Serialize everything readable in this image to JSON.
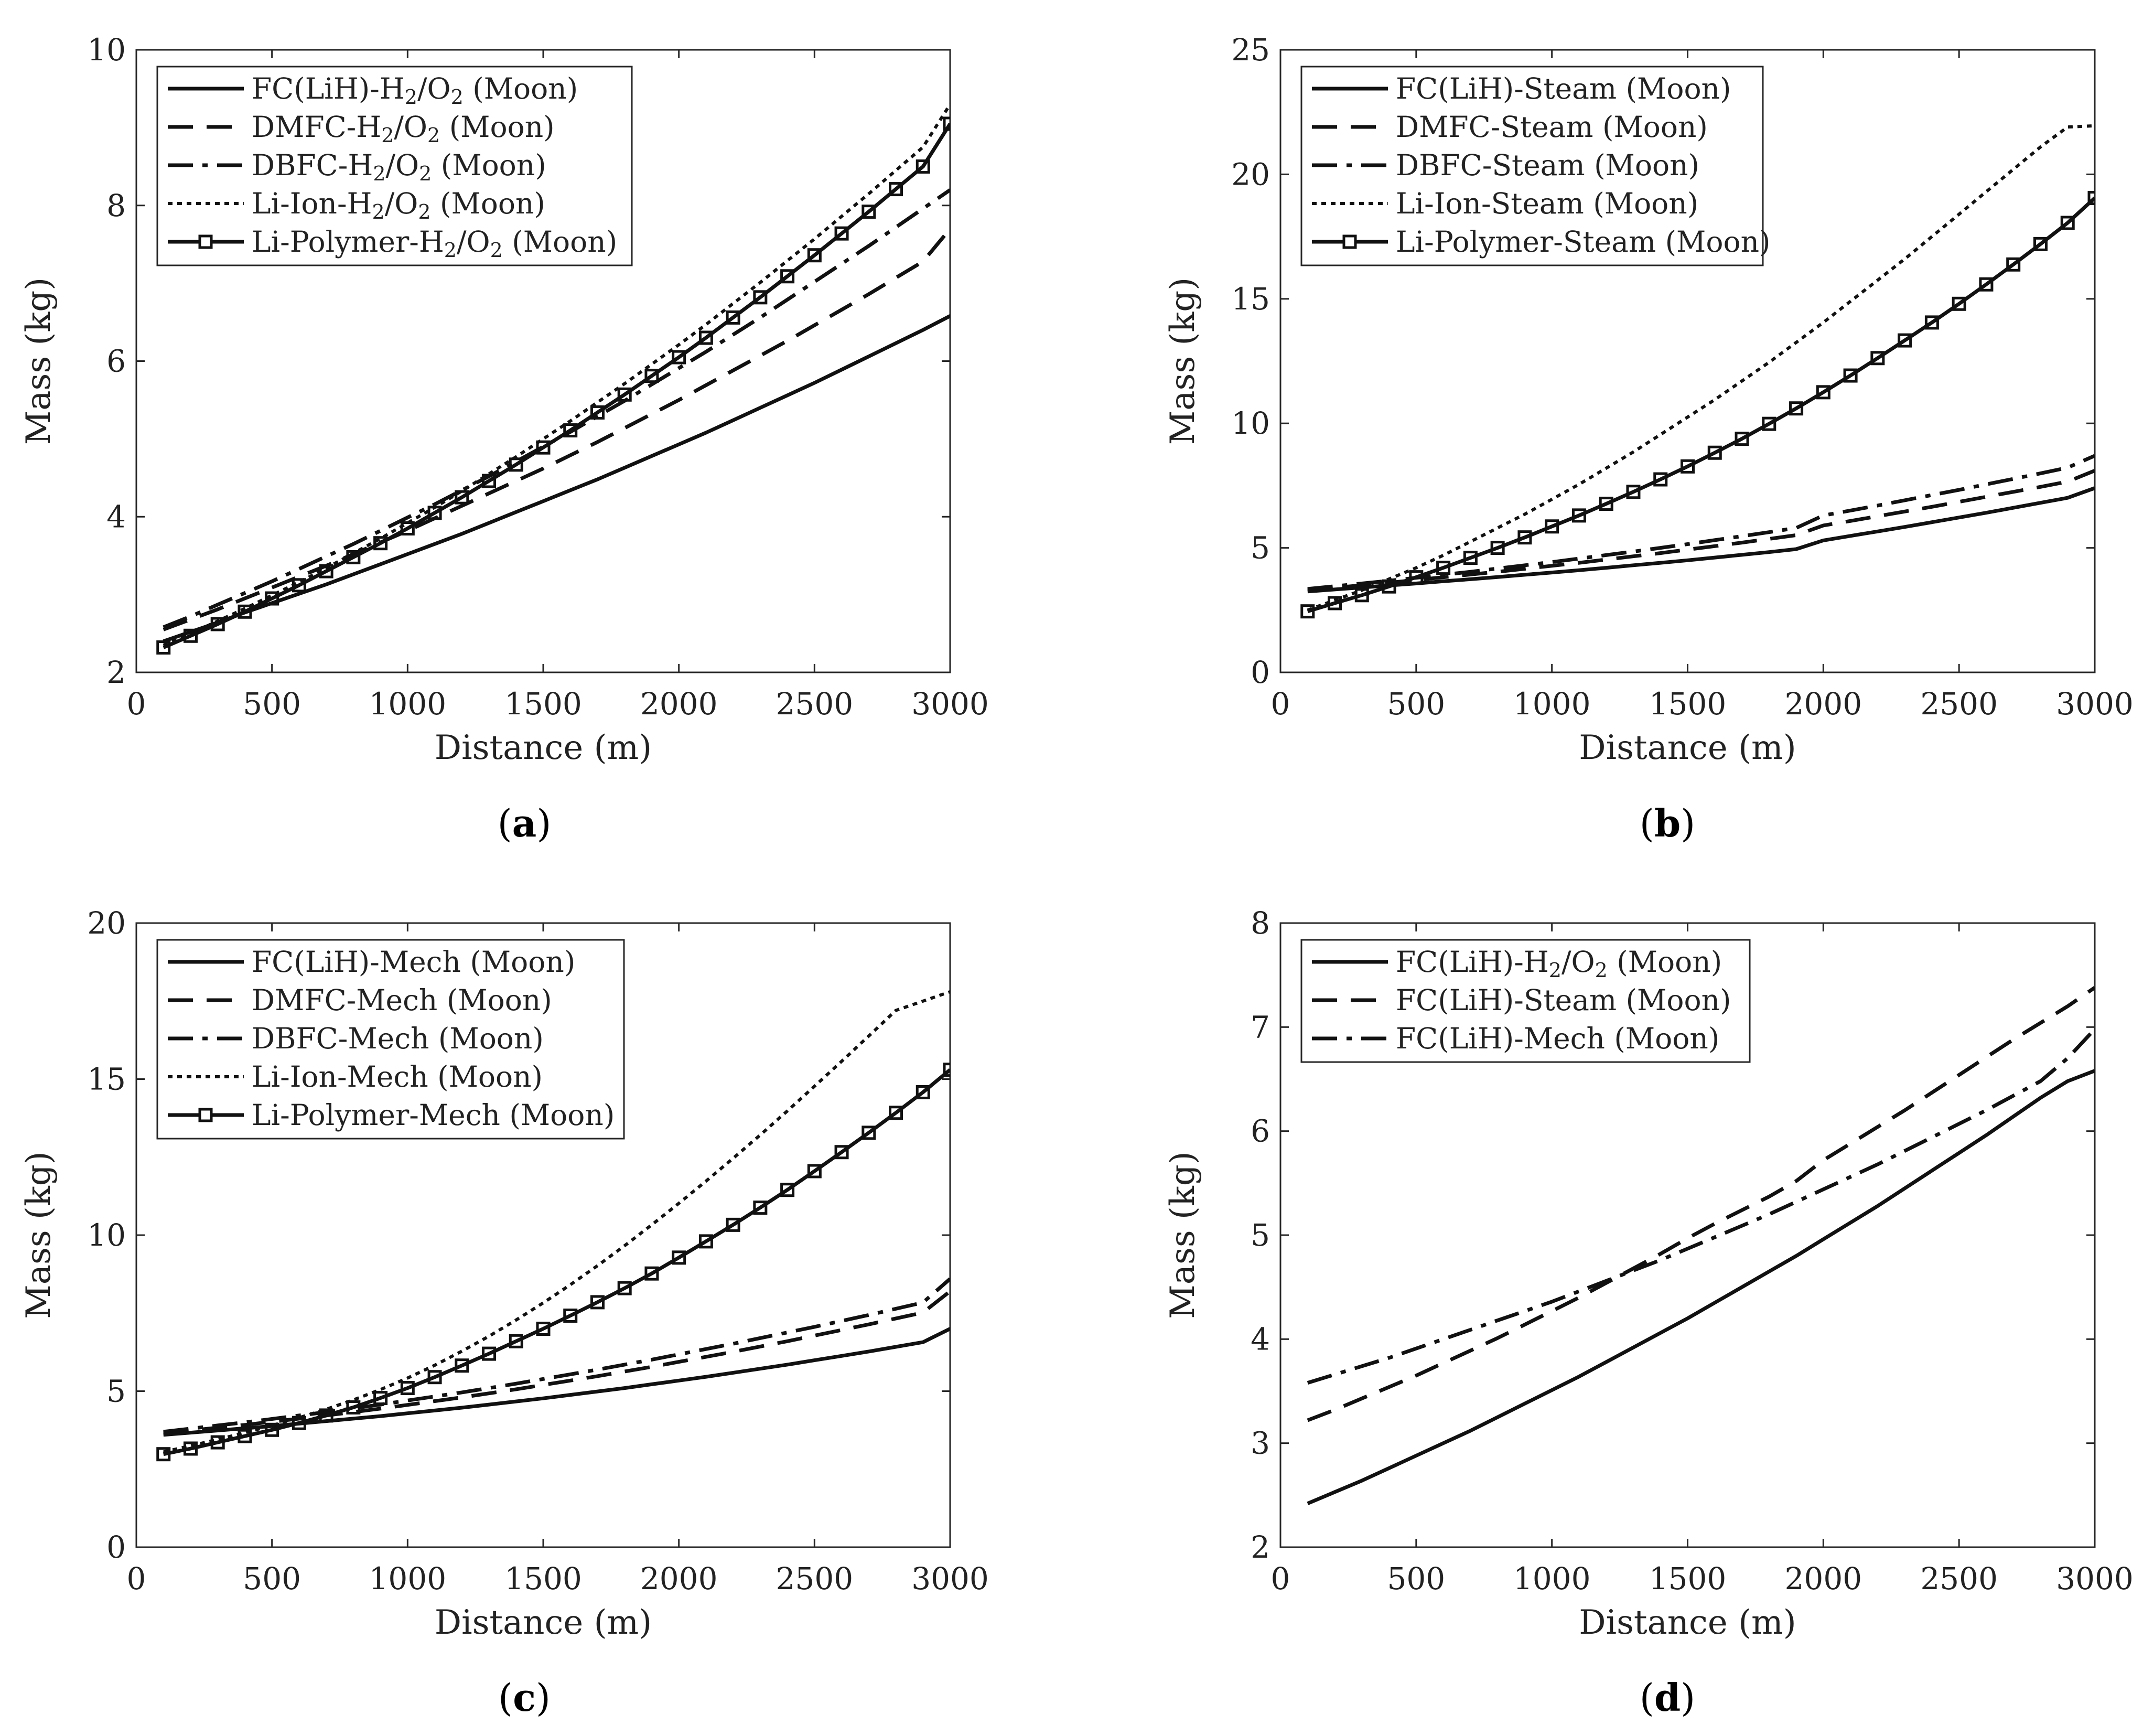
{
  "chart_data": [
    {
      "id": "a",
      "caption": "a",
      "type": "line",
      "xlabel": "Distance (m)",
      "ylabel": "Mass (kg)",
      "xlim": [
        0,
        3000
      ],
      "ylim": [
        2,
        10
      ],
      "xticks": [
        0,
        500,
        1000,
        1500,
        2000,
        2500,
        3000
      ],
      "yticks": [
        2,
        4,
        6,
        8,
        10
      ],
      "x": [
        100,
        200,
        300,
        400,
        500,
        600,
        700,
        800,
        900,
        1000,
        1100,
        1200,
        1300,
        1400,
        1500,
        1600,
        1700,
        1800,
        1900,
        2000,
        2100,
        2200,
        2300,
        2400,
        2500,
        2600,
        2700,
        2800,
        2900,
        3000
      ],
      "series": [
        {
          "name": "FC(LiH)-H₂/O₂ (Moon)",
          "style": "solid",
          "markers": false,
          "values": [
            2.4,
            2.52,
            2.64,
            2.77,
            2.89,
            3.01,
            3.13,
            3.26,
            3.39,
            3.52,
            3.65,
            3.78,
            3.92,
            4.06,
            4.2,
            4.34,
            4.48,
            4.63,
            4.78,
            4.93,
            5.08,
            5.24,
            5.4,
            5.56,
            5.72,
            5.89,
            6.06,
            6.23,
            6.4,
            6.58
          ]
        },
        {
          "name": "DMFC-H₂/O₂ (Moon)",
          "style": "dashed",
          "markers": false,
          "values": [
            2.55,
            2.68,
            2.81,
            2.95,
            3.09,
            3.23,
            3.37,
            3.52,
            3.67,
            3.82,
            3.98,
            4.14,
            4.3,
            4.46,
            4.62,
            4.79,
            4.96,
            5.14,
            5.32,
            5.5,
            5.69,
            5.88,
            6.07,
            6.26,
            6.46,
            6.66,
            6.86,
            7.07,
            7.28,
            7.7
          ]
        },
        {
          "name": "DBFC-H₂/O₂ (Moon)",
          "style": "dashdot",
          "markers": false,
          "values": [
            2.58,
            2.72,
            2.87,
            3.02,
            3.17,
            3.33,
            3.49,
            3.65,
            3.82,
            3.99,
            4.16,
            4.34,
            4.52,
            4.71,
            4.9,
            5.09,
            5.29,
            5.49,
            5.7,
            5.91,
            6.12,
            6.34,
            6.56,
            6.79,
            7.02,
            7.25,
            7.48,
            7.72,
            7.96,
            8.2
          ]
        },
        {
          "name": "Li-Ion-H₂/O₂ (Moon)",
          "style": "dotted",
          "markers": false,
          "values": [
            2.35,
            2.5,
            2.66,
            2.82,
            2.99,
            3.16,
            3.34,
            3.53,
            3.72,
            3.92,
            4.12,
            4.33,
            4.55,
            4.77,
            5.0,
            5.23,
            5.47,
            5.71,
            5.96,
            6.21,
            6.47,
            6.74,
            7.01,
            7.29,
            7.57,
            7.86,
            8.15,
            8.45,
            8.75,
            9.3
          ]
        },
        {
          "name": "Li-Polymer-H₂/O₂ (Moon)",
          "style": "solid",
          "markers": true,
          "values": [
            2.32,
            2.47,
            2.62,
            2.78,
            2.95,
            3.12,
            3.3,
            3.48,
            3.66,
            3.85,
            4.05,
            4.25,
            4.46,
            4.67,
            4.89,
            5.11,
            5.34,
            5.57,
            5.81,
            6.05,
            6.3,
            6.56,
            6.82,
            7.09,
            7.36,
            7.64,
            7.92,
            8.21,
            8.5,
            9.05
          ]
        }
      ]
    },
    {
      "id": "b",
      "caption": "b",
      "type": "line",
      "xlabel": "Distance (m)",
      "ylabel": "Mass (kg)",
      "xlim": [
        0,
        3000
      ],
      "ylim": [
        0,
        25
      ],
      "xticks": [
        0,
        500,
        1000,
        1500,
        2000,
        2500,
        3000
      ],
      "yticks": [
        0,
        5,
        10,
        15,
        20,
        25
      ],
      "x": [
        100,
        200,
        300,
        400,
        500,
        600,
        700,
        800,
        900,
        1000,
        1100,
        1200,
        1300,
        1400,
        1500,
        1600,
        1700,
        1800,
        1900,
        2000,
        2100,
        2200,
        2300,
        2400,
        2500,
        2600,
        2700,
        2800,
        2900,
        3000
      ],
      "series": [
        {
          "name": "FC(LiH)-Steam (Moon)",
          "style": "solid",
          "markers": false,
          "values": [
            3.25,
            3.33,
            3.41,
            3.49,
            3.57,
            3.66,
            3.74,
            3.83,
            3.92,
            4.01,
            4.1,
            4.2,
            4.3,
            4.4,
            4.5,
            4.61,
            4.72,
            4.83,
            4.95,
            5.3,
            5.48,
            5.66,
            5.84,
            6.03,
            6.22,
            6.41,
            6.61,
            6.81,
            7.01,
            7.4
          ]
        },
        {
          "name": "DMFC-Steam (Moon)",
          "style": "dashed",
          "markers": false,
          "values": [
            3.3,
            3.4,
            3.5,
            3.6,
            3.71,
            3.82,
            3.93,
            4.04,
            4.16,
            4.28,
            4.4,
            4.53,
            4.66,
            4.79,
            4.93,
            5.07,
            5.21,
            5.36,
            5.51,
            5.9,
            6.08,
            6.27,
            6.46,
            6.65,
            6.85,
            7.05,
            7.25,
            7.45,
            7.66,
            8.1
          ]
        },
        {
          "name": "DBFC-Steam (Moon)",
          "style": "dashdot",
          "markers": false,
          "values": [
            3.35,
            3.46,
            3.57,
            3.68,
            3.8,
            3.92,
            4.04,
            4.17,
            4.3,
            4.43,
            4.57,
            4.71,
            4.85,
            5.0,
            5.15,
            5.31,
            5.47,
            5.63,
            5.8,
            6.3,
            6.5,
            6.7,
            6.91,
            7.12,
            7.33,
            7.55,
            7.77,
            7.99,
            8.22,
            8.7
          ]
        },
        {
          "name": "Li-Ion-Steam (Moon)",
          "style": "dotted",
          "markers": false,
          "values": [
            2.5,
            2.9,
            3.3,
            3.75,
            4.2,
            4.7,
            5.25,
            5.8,
            6.35,
            6.95,
            7.55,
            8.2,
            8.85,
            9.55,
            10.25,
            10.95,
            11.7,
            12.45,
            13.25,
            14.05,
            14.9,
            15.75,
            16.6,
            17.5,
            18.4,
            19.3,
            20.2,
            21.1,
            21.9,
            21.95
          ]
        },
        {
          "name": "Li-Polymer-Steam (Moon)",
          "style": "solid",
          "markers": true,
          "values": [
            2.45,
            2.78,
            3.1,
            3.45,
            3.82,
            4.2,
            4.6,
            5.0,
            5.42,
            5.86,
            6.3,
            6.77,
            7.25,
            7.75,
            8.27,
            8.82,
            9.38,
            9.98,
            10.6,
            11.25,
            11.92,
            12.62,
            13.33,
            14.05,
            14.8,
            15.58,
            16.38,
            17.2,
            18.05,
            19.05
          ]
        }
      ]
    },
    {
      "id": "c",
      "caption": "c",
      "type": "line",
      "xlabel": "Distance (m)",
      "ylabel": "Mass (kg)",
      "xlim": [
        0,
        3000
      ],
      "ylim": [
        0,
        20
      ],
      "xticks": [
        0,
        500,
        1000,
        1500,
        2000,
        2500,
        3000
      ],
      "yticks": [
        0,
        5,
        10,
        15,
        20
      ],
      "x": [
        100,
        200,
        300,
        400,
        500,
        600,
        700,
        800,
        900,
        1000,
        1100,
        1200,
        1300,
        1400,
        1500,
        1600,
        1700,
        1800,
        1900,
        2000,
        2100,
        2200,
        2300,
        2400,
        2500,
        2600,
        2700,
        2800,
        2900,
        3000
      ],
      "series": [
        {
          "name": "FC(LiH)-Mech (Moon)",
          "style": "solid",
          "markers": false,
          "values": [
            3.6,
            3.67,
            3.74,
            3.81,
            3.88,
            3.96,
            4.04,
            4.12,
            4.2,
            4.29,
            4.38,
            4.47,
            4.57,
            4.67,
            4.77,
            4.88,
            4.99,
            5.1,
            5.22,
            5.34,
            5.46,
            5.59,
            5.72,
            5.85,
            5.99,
            6.13,
            6.27,
            6.42,
            6.57,
            7.0
          ]
        },
        {
          "name": "DMFC-Mech (Moon)",
          "style": "dashed",
          "markers": false,
          "values": [
            3.65,
            3.74,
            3.83,
            3.92,
            4.02,
            4.12,
            4.22,
            4.33,
            4.44,
            4.56,
            4.68,
            4.8,
            4.93,
            5.06,
            5.2,
            5.34,
            5.48,
            5.63,
            5.78,
            5.94,
            6.1,
            6.26,
            6.43,
            6.6,
            6.78,
            6.96,
            7.14,
            7.33,
            7.52,
            8.2
          ]
        },
        {
          "name": "DBFC-Mech (Moon)",
          "style": "dashdot",
          "markers": false,
          "values": [
            3.7,
            3.8,
            3.9,
            4.0,
            4.11,
            4.22,
            4.33,
            4.45,
            4.57,
            4.7,
            4.83,
            4.96,
            5.1,
            5.24,
            5.39,
            5.54,
            5.69,
            5.85,
            6.01,
            6.18,
            6.35,
            6.52,
            6.7,
            6.88,
            7.06,
            7.25,
            7.44,
            7.64,
            7.84,
            8.6
          ]
        },
        {
          "name": "Li-Ion-Mech (Moon)",
          "style": "dotted",
          "markers": false,
          "values": [
            3.05,
            3.25,
            3.45,
            3.67,
            3.9,
            4.15,
            4.42,
            4.72,
            5.05,
            5.42,
            5.83,
            6.28,
            6.76,
            7.28,
            7.83,
            8.41,
            9.02,
            9.66,
            10.33,
            11.02,
            11.73,
            12.46,
            13.21,
            13.98,
            14.77,
            15.57,
            16.38,
            17.2,
            17.5,
            17.8
          ]
        },
        {
          "name": "Li-Polymer-Mech (Moon)",
          "style": "solid",
          "markers": true,
          "values": [
            2.98,
            3.16,
            3.36,
            3.56,
            3.76,
            3.98,
            4.22,
            4.48,
            4.78,
            5.1,
            5.45,
            5.82,
            6.2,
            6.6,
            7.0,
            7.42,
            7.85,
            8.3,
            8.77,
            9.28,
            9.8,
            10.33,
            10.88,
            11.45,
            12.05,
            12.66,
            13.28,
            13.92,
            14.58,
            15.3
          ]
        }
      ]
    },
    {
      "id": "d",
      "caption": "d",
      "type": "line",
      "xlabel": "Distance (m)",
      "ylabel": "Mass (kg)",
      "xlim": [
        0,
        3000
      ],
      "ylim": [
        2,
        8
      ],
      "xticks": [
        0,
        500,
        1000,
        1500,
        2000,
        2500,
        3000
      ],
      "yticks": [
        2,
        3,
        4,
        5,
        6,
        7,
        8
      ],
      "x": [
        100,
        200,
        300,
        400,
        500,
        600,
        700,
        800,
        900,
        1000,
        1100,
        1200,
        1300,
        1400,
        1500,
        1600,
        1700,
        1800,
        1900,
        2000,
        2100,
        2200,
        2300,
        2400,
        2500,
        2600,
        2700,
        2800,
        2900,
        3000
      ],
      "series": [
        {
          "name": "FC(LiH)-H₂/O₂ (Moon)",
          "style": "solid",
          "markers": false,
          "values": [
            2.42,
            2.53,
            2.64,
            2.76,
            2.88,
            3.0,
            3.12,
            3.25,
            3.38,
            3.51,
            3.64,
            3.78,
            3.92,
            4.06,
            4.2,
            4.35,
            4.5,
            4.65,
            4.8,
            4.96,
            5.12,
            5.28,
            5.45,
            5.62,
            5.79,
            5.96,
            6.14,
            6.32,
            6.48,
            6.58
          ]
        },
        {
          "name": "FC(LiH)-Steam (Moon)",
          "style": "dashed",
          "markers": false,
          "values": [
            3.22,
            3.32,
            3.43,
            3.54,
            3.65,
            3.77,
            3.89,
            4.01,
            4.14,
            4.27,
            4.4,
            4.54,
            4.68,
            4.82,
            4.97,
            5.11,
            5.24,
            5.37,
            5.52,
            5.72,
            5.88,
            6.04,
            6.2,
            6.37,
            6.54,
            6.71,
            6.88,
            7.04,
            7.2,
            7.38
          ]
        },
        {
          "name": "FC(LiH)-Mech (Moon)",
          "style": "dashdot",
          "markers": false,
          "values": [
            3.58,
            3.66,
            3.74,
            3.82,
            3.91,
            4.0,
            4.09,
            4.18,
            4.27,
            4.36,
            4.46,
            4.56,
            4.66,
            4.76,
            4.87,
            4.98,
            5.09,
            5.2,
            5.32,
            5.44,
            5.56,
            5.68,
            5.81,
            5.94,
            6.07,
            6.2,
            6.34,
            6.48,
            6.7,
            6.98
          ]
        }
      ]
    }
  ]
}
